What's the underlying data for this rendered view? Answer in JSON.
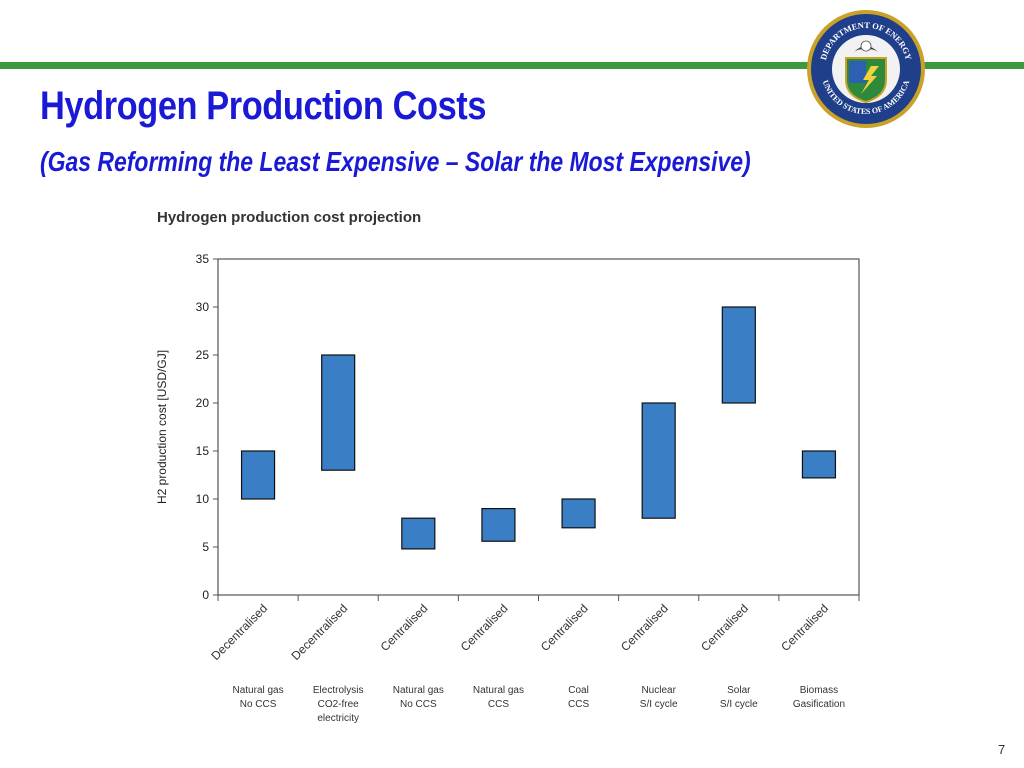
{
  "slide": {
    "title": "Hydrogen Production Costs",
    "subtitle": "(Gas Reforming the Least Expensive – Solar the Most Expensive)",
    "page_number": "7",
    "accent_color": "#3c9a3c",
    "title_color": "#1a1ad6",
    "logo": {
      "icon": "doe-seal-icon",
      "text": "DEPARTMENT OF ENERGY • UNITED STATES OF AMERICA"
    }
  },
  "chart_data": {
    "type": "floating-bar",
    "title": "Hydrogen production cost projection",
    "ylabel": "H2 production cost [USD/GJ]",
    "xlabel": "",
    "ylim": [
      0,
      35
    ],
    "yticks": [
      0,
      5,
      10,
      15,
      20,
      25,
      30,
      35
    ],
    "grid": false,
    "bar_color": "#3a7ec5",
    "categories": [
      {
        "scale": "Decentralised",
        "source": [
          "Natural gas",
          "No CCS"
        ],
        "low": 10,
        "high": 15
      },
      {
        "scale": "Decentralised",
        "source": [
          "Electrolysis",
          "CO2-free",
          "electricity"
        ],
        "low": 13,
        "high": 25
      },
      {
        "scale": "Centralised",
        "source": [
          "Natural gas",
          "No CCS"
        ],
        "low": 4.8,
        "high": 8
      },
      {
        "scale": "Centralised",
        "source": [
          "Natural gas",
          "CCS"
        ],
        "low": 5.6,
        "high": 9
      },
      {
        "scale": "Centralised",
        "source": [
          "Coal",
          "CCS"
        ],
        "low": 7,
        "high": 10
      },
      {
        "scale": "Centralised",
        "source": [
          "Nuclear",
          "S/I cycle"
        ],
        "low": 8,
        "high": 20
      },
      {
        "scale": "Centralised",
        "source": [
          "Solar",
          "S/I cycle"
        ],
        "low": 20,
        "high": 30
      },
      {
        "scale": "Centralised",
        "source": [
          "Biomass",
          "Gasification"
        ],
        "low": 12.2,
        "high": 15
      }
    ]
  }
}
